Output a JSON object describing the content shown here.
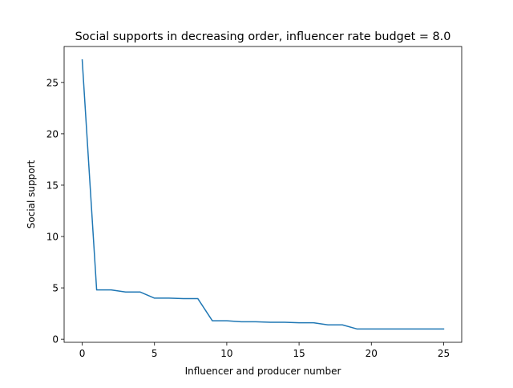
{
  "chart_data": {
    "type": "line",
    "title": "Social supports in decreasing order, influencer rate budget = 8.0",
    "xlabel": "Influencer and producer number",
    "ylabel": "Social support",
    "x": [
      0,
      1,
      2,
      3,
      4,
      5,
      6,
      7,
      8,
      9,
      10,
      11,
      12,
      13,
      14,
      15,
      16,
      17,
      18,
      19,
      20,
      21,
      22,
      23,
      24,
      25
    ],
    "series": [
      {
        "values": [
          27.2,
          4.8,
          4.8,
          4.6,
          4.6,
          4.0,
          4.0,
          3.95,
          3.95,
          1.8,
          1.8,
          1.7,
          1.7,
          1.65,
          1.65,
          1.6,
          1.6,
          1.4,
          1.4,
          1.0,
          1.0,
          1.0,
          1.0,
          1.0,
          1.0,
          1.0
        ],
        "color": "#1f77b4"
      }
    ],
    "xlim": [
      -1.25,
      26.25
    ],
    "ylim": [
      -0.3,
      28.5
    ],
    "xticks": [
      0,
      5,
      10,
      15,
      20,
      25
    ],
    "yticks": [
      0,
      5,
      10,
      15,
      20,
      25
    ],
    "grid": false,
    "legend": "none"
  }
}
